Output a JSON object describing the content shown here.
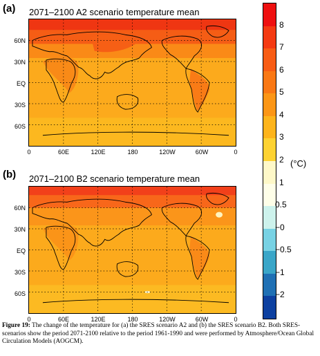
{
  "panels": [
    {
      "label": "(a)",
      "title": "2071–2100 A2 scenario temperature mean"
    },
    {
      "label": "(b)",
      "title": "2071–2100 B2 scenario temperature mean"
    }
  ],
  "lat_ticks": [
    "60N",
    "30N",
    "EQ",
    "30S",
    "60S"
  ],
  "lon_ticks": [
    "0",
    "60E",
    "120E",
    "180",
    "120W",
    "60W",
    "0"
  ],
  "legend": {
    "unit": "(°C)",
    "labels": [
      "8",
      "7",
      "6",
      "5",
      "4",
      "3",
      "2",
      "1",
      "0.5",
      "−0",
      "−0.5",
      "−1",
      "−2"
    ],
    "colors": [
      "#ee1010",
      "#f43a12",
      "#f85c14",
      "#fa7814",
      "#fc9616",
      "#fdb41c",
      "#fdd232",
      "#fef8c8",
      "#fefee8",
      "#cdf2ec",
      "#78d2e4",
      "#3aa6c8",
      "#1f70b4",
      "#0d40a0"
    ]
  },
  "caption": {
    "figure_label": "Figure 19:",
    "text": " The change of the temperature for (a) the SRES scenario A2 and (b) the SRES scenario B2. Both SRES-scenarios show the period 2071-2100 relative to the period 1961-1990 and were performed by Atmosphere/Ocean Global Circulation Models (AOGCM)."
  }
}
